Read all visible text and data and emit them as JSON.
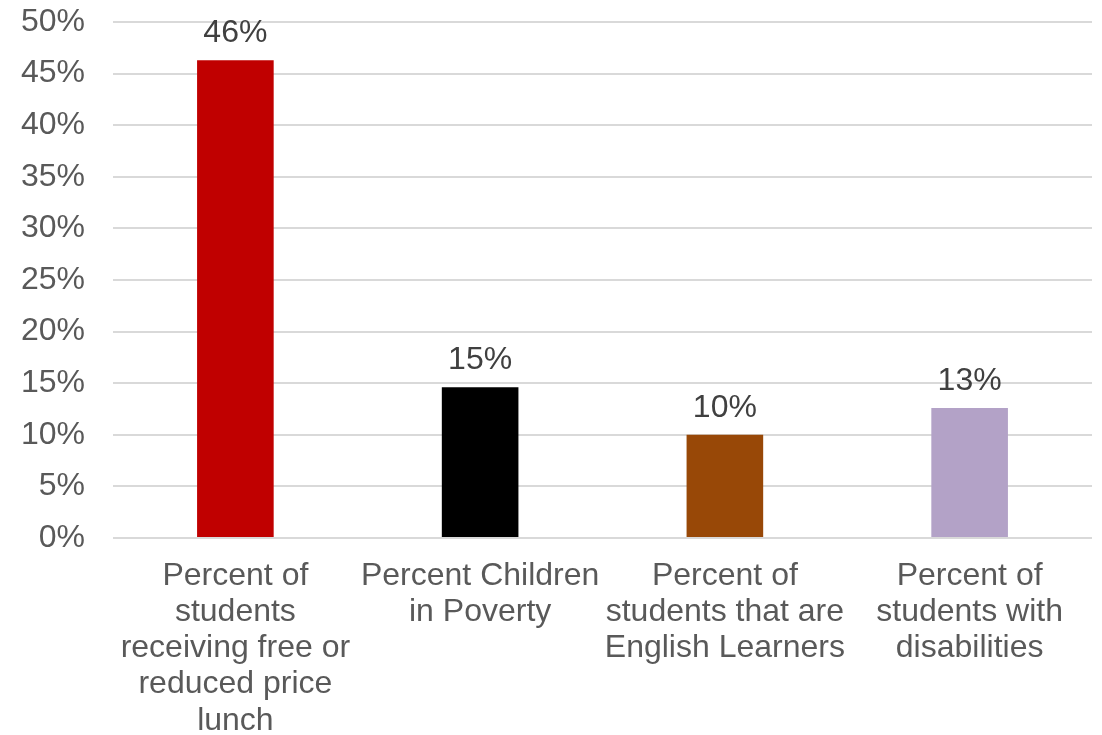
{
  "chart_data": {
    "type": "bar",
    "categories": [
      "Percent of students receiving free or reduced price lunch",
      "Percent Children in Poverty",
      "Percent of students that are English Learners",
      "Percent of students with disabilities"
    ],
    "values": [
      46.3,
      14.6,
      10.0,
      12.6
    ],
    "colors": [
      "#c00000",
      "#000000",
      "#984807",
      "#b3a2c7"
    ],
    "value_labels": [
      "46%",
      "15%",
      "10%",
      "13%"
    ],
    "ylim": [
      0,
      50
    ],
    "yticks": [
      {
        "value": 0,
        "label": "0%"
      },
      {
        "value": 5,
        "label": "5%"
      },
      {
        "value": 10,
        "label": "10%"
      },
      {
        "value": 15,
        "label": "15%"
      },
      {
        "value": 20,
        "label": "20%"
      },
      {
        "value": 25,
        "label": "25%"
      },
      {
        "value": 30,
        "label": "30%"
      },
      {
        "value": 35,
        "label": "35%"
      },
      {
        "value": 40,
        "label": "40%"
      },
      {
        "value": 45,
        "label": "45%"
      },
      {
        "value": 50,
        "label": "50%"
      }
    ],
    "grid": "y"
  }
}
